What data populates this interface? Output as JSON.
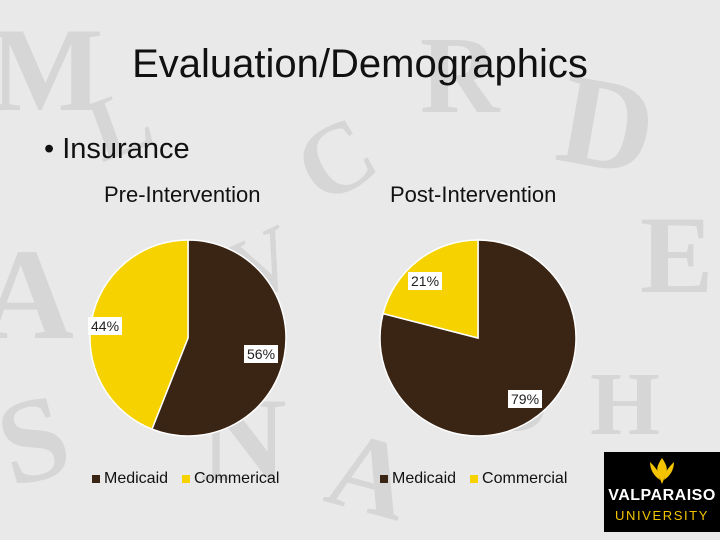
{
  "slide": {
    "title": "Evaluation/Demographics",
    "bullet": "Insurance"
  },
  "colors": {
    "medicaid": "#3a2414",
    "commercial": "#f5d200",
    "logo_gold": "#f5c400"
  },
  "chart_data": [
    {
      "type": "pie",
      "title": "Pre-Intervention",
      "labels": [
        "Medicaid",
        "Commerical"
      ],
      "values": [
        56,
        44
      ],
      "data_labels": [
        "56%",
        "44%"
      ],
      "legend": [
        "Medicaid",
        "Commerical"
      ]
    },
    {
      "type": "pie",
      "title": "Post-Intervention",
      "labels": [
        "Medicaid",
        "Commercial"
      ],
      "values": [
        79,
        21
      ],
      "data_labels": [
        "79%",
        "21%"
      ],
      "legend": [
        "Medicaid",
        "Commercial"
      ]
    }
  ],
  "logo": {
    "line1": "VALPARAISO",
    "line2": "UNIVERSITY"
  }
}
